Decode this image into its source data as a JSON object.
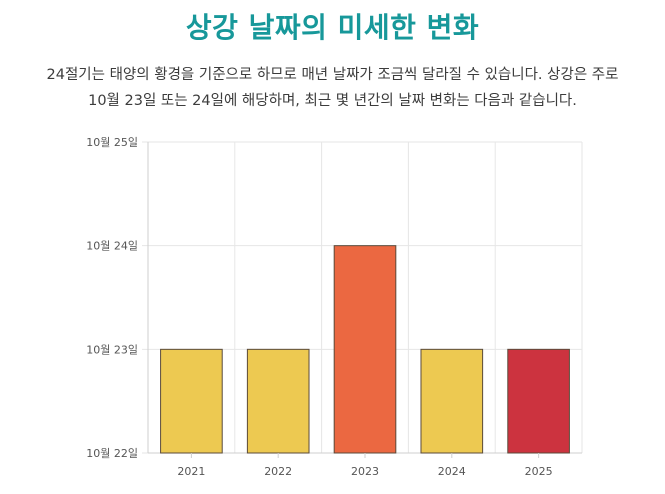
{
  "page": {
    "title": "상강 날짜의 미세한 변화",
    "intro_line1": "24절기는 태양의 황경을 기준으로 하므로 매년 날짜가 조금씩 달라질 수 있습니다. 상강은 주로",
    "intro_line2": "10월 23일 또는 24일에 해당하며, 최근 몇 년간의 날짜 변화는 다음과 같습니다."
  },
  "chart_data": {
    "type": "bar",
    "categories": [
      "2021",
      "2022",
      "2023",
      "2024",
      "2025"
    ],
    "values": [
      "2021-10-23",
      "2022-10-23",
      "2023-10-24",
      "2024-10-23",
      "2025-10-23"
    ],
    "y_ticks": [
      "10월 22일",
      "10월 23일",
      "10월 24일",
      "10월 25일"
    ],
    "ylim": [
      "10월 22일",
      "10월 25일"
    ],
    "bar_colors": [
      "#edc951",
      "#edc951",
      "#eb6841",
      "#edc951",
      "#cc333f"
    ],
    "grid": true,
    "legend": "none"
  }
}
